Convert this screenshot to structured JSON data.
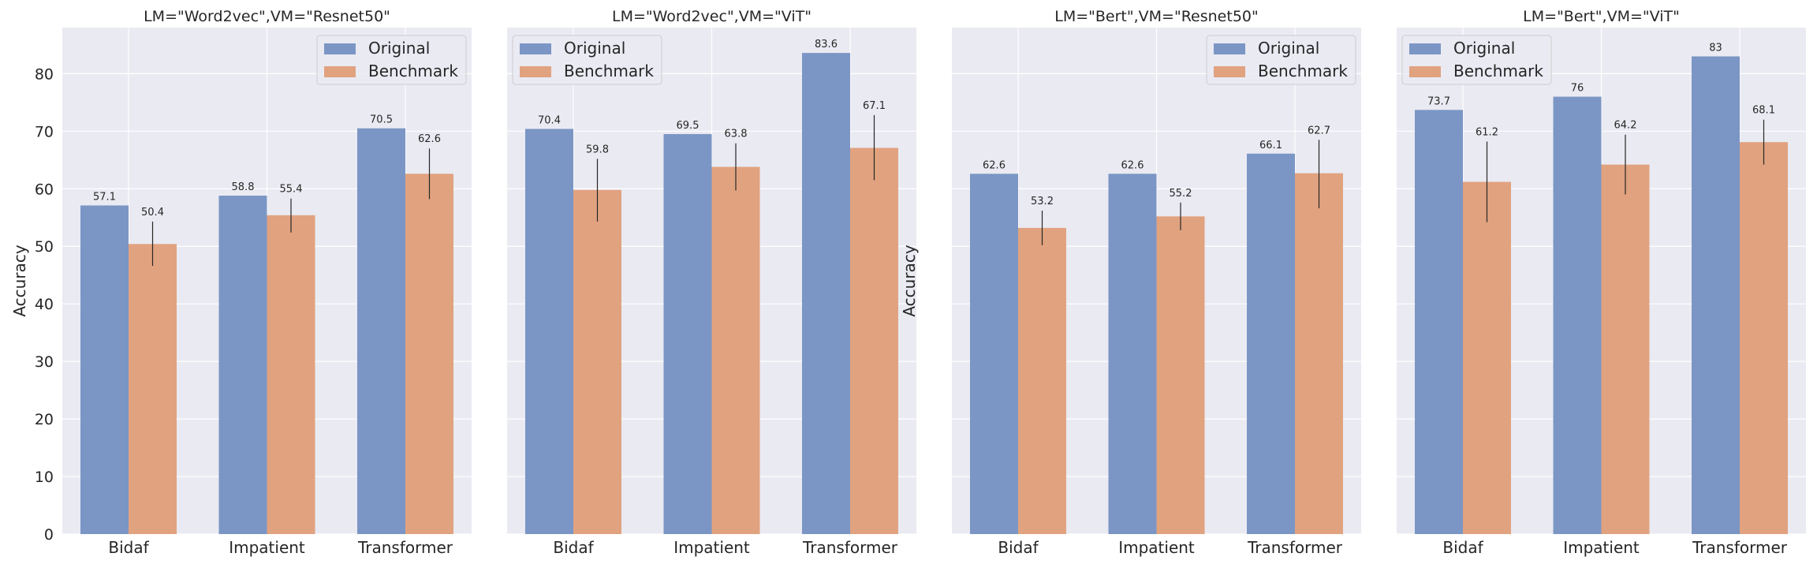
{
  "chart_data": [
    {
      "type": "bar",
      "title": "LM=\"Word2vec\",VM=\"Resnet50\"",
      "ylabel": "Accuracy",
      "xlabel": "",
      "categories": [
        "Bidaf",
        "Impatient",
        "Transformer"
      ],
      "ylim": [
        0,
        88
      ],
      "yticks": [
        0,
        10,
        20,
        30,
        40,
        50,
        60,
        70,
        80
      ],
      "grid": true,
      "legend": "top-right",
      "series": [
        {
          "name": "Original",
          "color": "#7b96c5",
          "values": [
            57.1,
            58.8,
            70.5
          ],
          "labels": [
            "57.1",
            "58.8",
            "70.5"
          ]
        },
        {
          "name": "Benchmark",
          "color": "#e1a27f",
          "values": [
            50.4,
            55.4,
            62.6
          ],
          "labels": [
            "50.4",
            "55.4",
            "62.6"
          ],
          "err_low": [
            46.6,
            52.4,
            58.2
          ],
          "err_high": [
            54.3,
            58.3,
            67.0
          ]
        }
      ]
    },
    {
      "type": "bar",
      "title": "LM=\"Word2vec\",VM=\"ViT\"",
      "ylabel": "",
      "xlabel": "",
      "categories": [
        "Bidaf",
        "Impatient",
        "Transformer"
      ],
      "ylim": [
        0,
        88
      ],
      "grid": true,
      "legend": "top-left",
      "series": [
        {
          "name": "Original",
          "color": "#7b96c5",
          "values": [
            70.4,
            69.5,
            83.6
          ],
          "labels": [
            "70.4",
            "69.5",
            "83.6"
          ]
        },
        {
          "name": "Benchmark",
          "color": "#e1a27f",
          "values": [
            59.8,
            63.8,
            67.1
          ],
          "labels": [
            "59.8",
            "63.8",
            "67.1"
          ],
          "err_low": [
            54.3,
            59.7,
            61.5
          ],
          "err_high": [
            65.2,
            67.9,
            72.8
          ]
        }
      ]
    },
    {
      "type": "bar",
      "title": "LM=\"Bert\",VM=\"Resnet50\"",
      "ylabel": "Accuracy",
      "xlabel": "",
      "categories": [
        "Bidaf",
        "Impatient",
        "Transformer"
      ],
      "ylim": [
        0,
        88
      ],
      "grid": true,
      "legend": "top-right",
      "series": [
        {
          "name": "Original",
          "color": "#7b96c5",
          "values": [
            62.6,
            62.6,
            66.1
          ],
          "labels": [
            "62.6",
            "62.6",
            "66.1"
          ]
        },
        {
          "name": "Benchmark",
          "color": "#e1a27f",
          "values": [
            53.2,
            55.2,
            62.7
          ],
          "labels": [
            "53.2",
            "55.2",
            "62.7"
          ],
          "err_low": [
            50.2,
            52.8,
            56.6
          ],
          "err_high": [
            56.2,
            57.6,
            68.5
          ]
        }
      ]
    },
    {
      "type": "bar",
      "title": "LM=\"Bert\",VM=\"ViT\"",
      "ylabel": "",
      "xlabel": "",
      "categories": [
        "Bidaf",
        "Impatient",
        "Transformer"
      ],
      "ylim": [
        0,
        88
      ],
      "grid": true,
      "legend": "top-left",
      "series": [
        {
          "name": "Original",
          "color": "#7b96c5",
          "values": [
            73.7,
            76,
            83
          ],
          "labels": [
            "73.7",
            "76",
            "83"
          ]
        },
        {
          "name": "Benchmark",
          "color": "#e1a27f",
          "values": [
            61.2,
            64.2,
            68.1
          ],
          "labels": [
            "61.2",
            "64.2",
            "68.1"
          ],
          "err_low": [
            54.2,
            59.0,
            64.2
          ],
          "err_high": [
            68.2,
            69.4,
            72.0
          ]
        }
      ]
    }
  ],
  "colors": {
    "background": "#eaeaf2",
    "grid": "#ffffff",
    "error_bar": "#262626"
  }
}
